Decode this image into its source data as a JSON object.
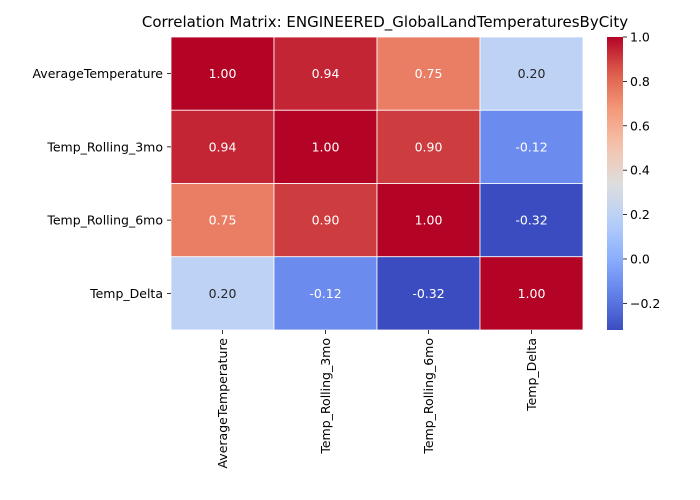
{
  "chart_data": {
    "type": "heatmap",
    "title": "Correlation Matrix: ENGINEERED_GlobalLandTemperaturesByCity",
    "xlabel": "",
    "ylabel": "",
    "rows": [
      "AverageTemperature",
      "Temp_Rolling_3mo",
      "Temp_Rolling_6mo",
      "Temp_Delta"
    ],
    "columns": [
      "AverageTemperature",
      "Temp_Rolling_3mo",
      "Temp_Rolling_6mo",
      "Temp_Delta"
    ],
    "values": [
      [
        1.0,
        0.94,
        0.75,
        0.2
      ],
      [
        0.94,
        1.0,
        0.9,
        -0.12
      ],
      [
        0.75,
        0.9,
        1.0,
        -0.32
      ],
      [
        0.2,
        -0.12,
        -0.32,
        1.0
      ]
    ],
    "value_format": "0.00",
    "colormap": "coolwarm",
    "color_range": [
      -0.32,
      1.0
    ],
    "colorbar_ticks": [
      "1.0",
      "0.8",
      "0.6",
      "0.4",
      "0.2",
      "0.0",
      "−0.2"
    ],
    "colorbar_tick_values": [
      1.0,
      0.8,
      0.6,
      0.4,
      0.2,
      0.0,
      -0.2
    ],
    "cell_border_color": "#ffffff",
    "grid": false,
    "legend": "colorbar-right"
  }
}
